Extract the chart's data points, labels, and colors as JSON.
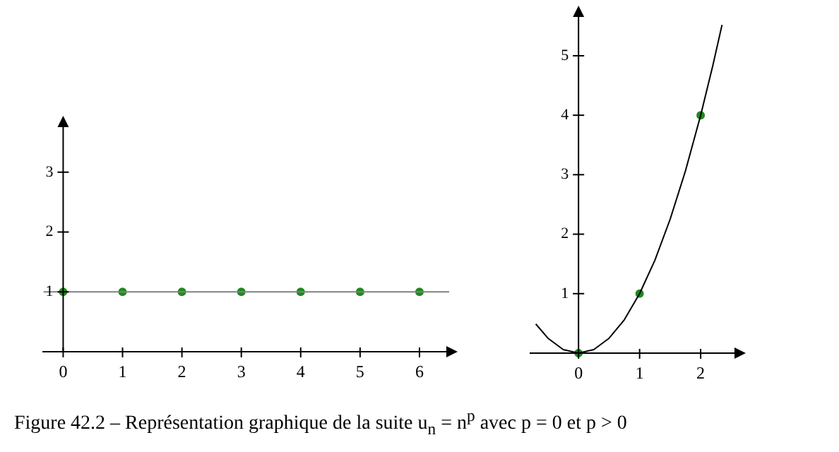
{
  "chart_data": [
    {
      "type": "line",
      "xlim": [
        -0.35,
        6.5
      ],
      "ylim": [
        0,
        3.8
      ],
      "xticks": [
        0,
        1,
        2,
        3,
        4,
        5,
        6
      ],
      "yticks": [
        1,
        2,
        3
      ],
      "grid": false,
      "legend": false,
      "series": [
        {
          "type": "line",
          "color": "#808080",
          "x": [
            -0.33,
            6.5
          ],
          "values": [
            1,
            1
          ],
          "marker": "none"
        },
        {
          "type": "scatter",
          "color": "#1f8a1f",
          "x": [
            0,
            1,
            2,
            3,
            4,
            5,
            6
          ],
          "values": [
            1,
            1,
            1,
            1,
            1,
            1,
            1
          ],
          "marker": "circle"
        }
      ],
      "annotations": [
        "Figure 42.2 – Représentation graphique de la suite u$_{n}$ = n$^{p}$ avec p = 0 et p > 0"
      ]
    },
    {
      "type": "line",
      "xlim": [
        -0.8,
        2.6
      ],
      "ylim": [
        0,
        5.7
      ],
      "xticks": [
        0,
        1,
        2
      ],
      "yticks": [
        1,
        2,
        3,
        4,
        5
      ],
      "grid": false,
      "legend": false,
      "series": [
        {
          "type": "line",
          "color": "#000000",
          "x": [
            -0.7,
            -0.5,
            -0.25,
            0,
            0.25,
            0.5,
            0.75,
            1,
            1.25,
            1.5,
            1.75,
            2,
            2.2,
            2.35
          ],
          "values": [
            0.49,
            0.25,
            0.06,
            0,
            0.06,
            0.25,
            0.56,
            1,
            1.56,
            2.25,
            3.06,
            4,
            4.84,
            5.52
          ],
          "marker": "none"
        },
        {
          "type": "scatter",
          "color": "#1f8a1f",
          "x": [
            0,
            1,
            2
          ],
          "values": [
            0,
            1,
            4
          ],
          "marker": "circle"
        }
      ]
    }
  ]
}
